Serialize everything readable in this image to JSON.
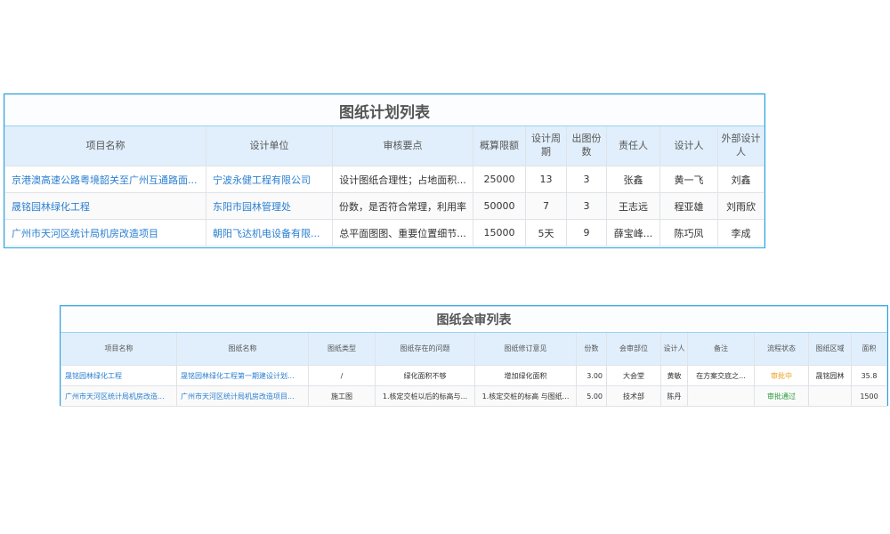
{
  "plan": {
    "title": "图纸计划列表",
    "headers": [
      "项目名称",
      "设计单位",
      "审核要点",
      "概算限额",
      "设计周期",
      "出图份数",
      "责任人",
      "设计人",
      "外部设计人"
    ],
    "rows": [
      [
        "京港澳高速公路粤境韶关至广州互通路面...",
        "宁波永健工程有限公司",
        "设计图纸合理性；占地面积...",
        "25000",
        "13",
        "3",
        "张鑫",
        "黄一飞",
        "刘鑫"
      ],
      [
        "晟铭园林绿化工程",
        "东阳市园林管理处",
        "份数，是否符合常理，利用率",
        "50000",
        "7",
        "3",
        "王志远",
        "程亚雄",
        "刘雨欣"
      ],
      [
        "广州市天河区统计局机房改造项目",
        "朝阳飞达机电设备有限...",
        "总平面图图、重要位置细节...",
        "15000",
        "5天",
        "9",
        "薛宝峰...",
        "陈巧凤",
        "李成"
      ]
    ]
  },
  "review": {
    "title": "图纸会审列表",
    "headers": [
      "项目名称",
      "图纸名称",
      "图纸类型",
      "图纸存在的问题",
      "图纸修订意见",
      "份数",
      "会审部位",
      "设计人",
      "备注",
      "流程状态",
      "图纸区域",
      "面积"
    ],
    "rows": [
      [
        "晟铭园林绿化工程",
        "晟铭园林绿化工程第一期建设计划...",
        "/",
        "绿化面积不够",
        "增加绿化面积",
        "3.00",
        "大会堂",
        "黄敏",
        "在方案交底之...",
        "审批中",
        "晟铭园林",
        "35.8"
      ],
      [
        "广州市天河区统计局机房改造...",
        "广州市天河区统计局机房改造项目...",
        "施工图",
        "1.核定交桩以后的标高与...",
        "1.核定交桩的标高 与图纸...",
        "5.00",
        "技术部",
        "陈丹",
        "",
        "审批通过",
        "",
        "1500"
      ]
    ],
    "status_colors": {
      "审批中": "#f0a020",
      "审批通过": "#2a9a3a"
    }
  }
}
